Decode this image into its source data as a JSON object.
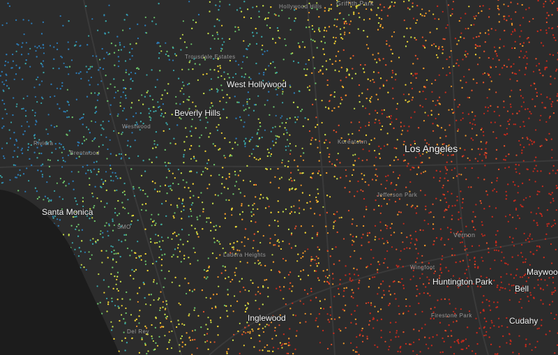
{
  "places": [
    "Hollywood Hills",
    "Griffith Park",
    "Trousdale Estates",
    "West Hollywood",
    "Beverly Hills",
    "Westwood",
    "Riviera",
    "Brentwood",
    "Koreatown",
    "Los Angeles",
    "Santa Monica",
    "SMO",
    "Jefferson Park",
    "Vernon",
    "Ladera Heights",
    "Inglewood",
    "Huntington Park",
    "Maywood",
    "Bell",
    "Cudahy",
    "Firestone Park",
    "Wingfoot",
    "Del Rey"
  ]
}
